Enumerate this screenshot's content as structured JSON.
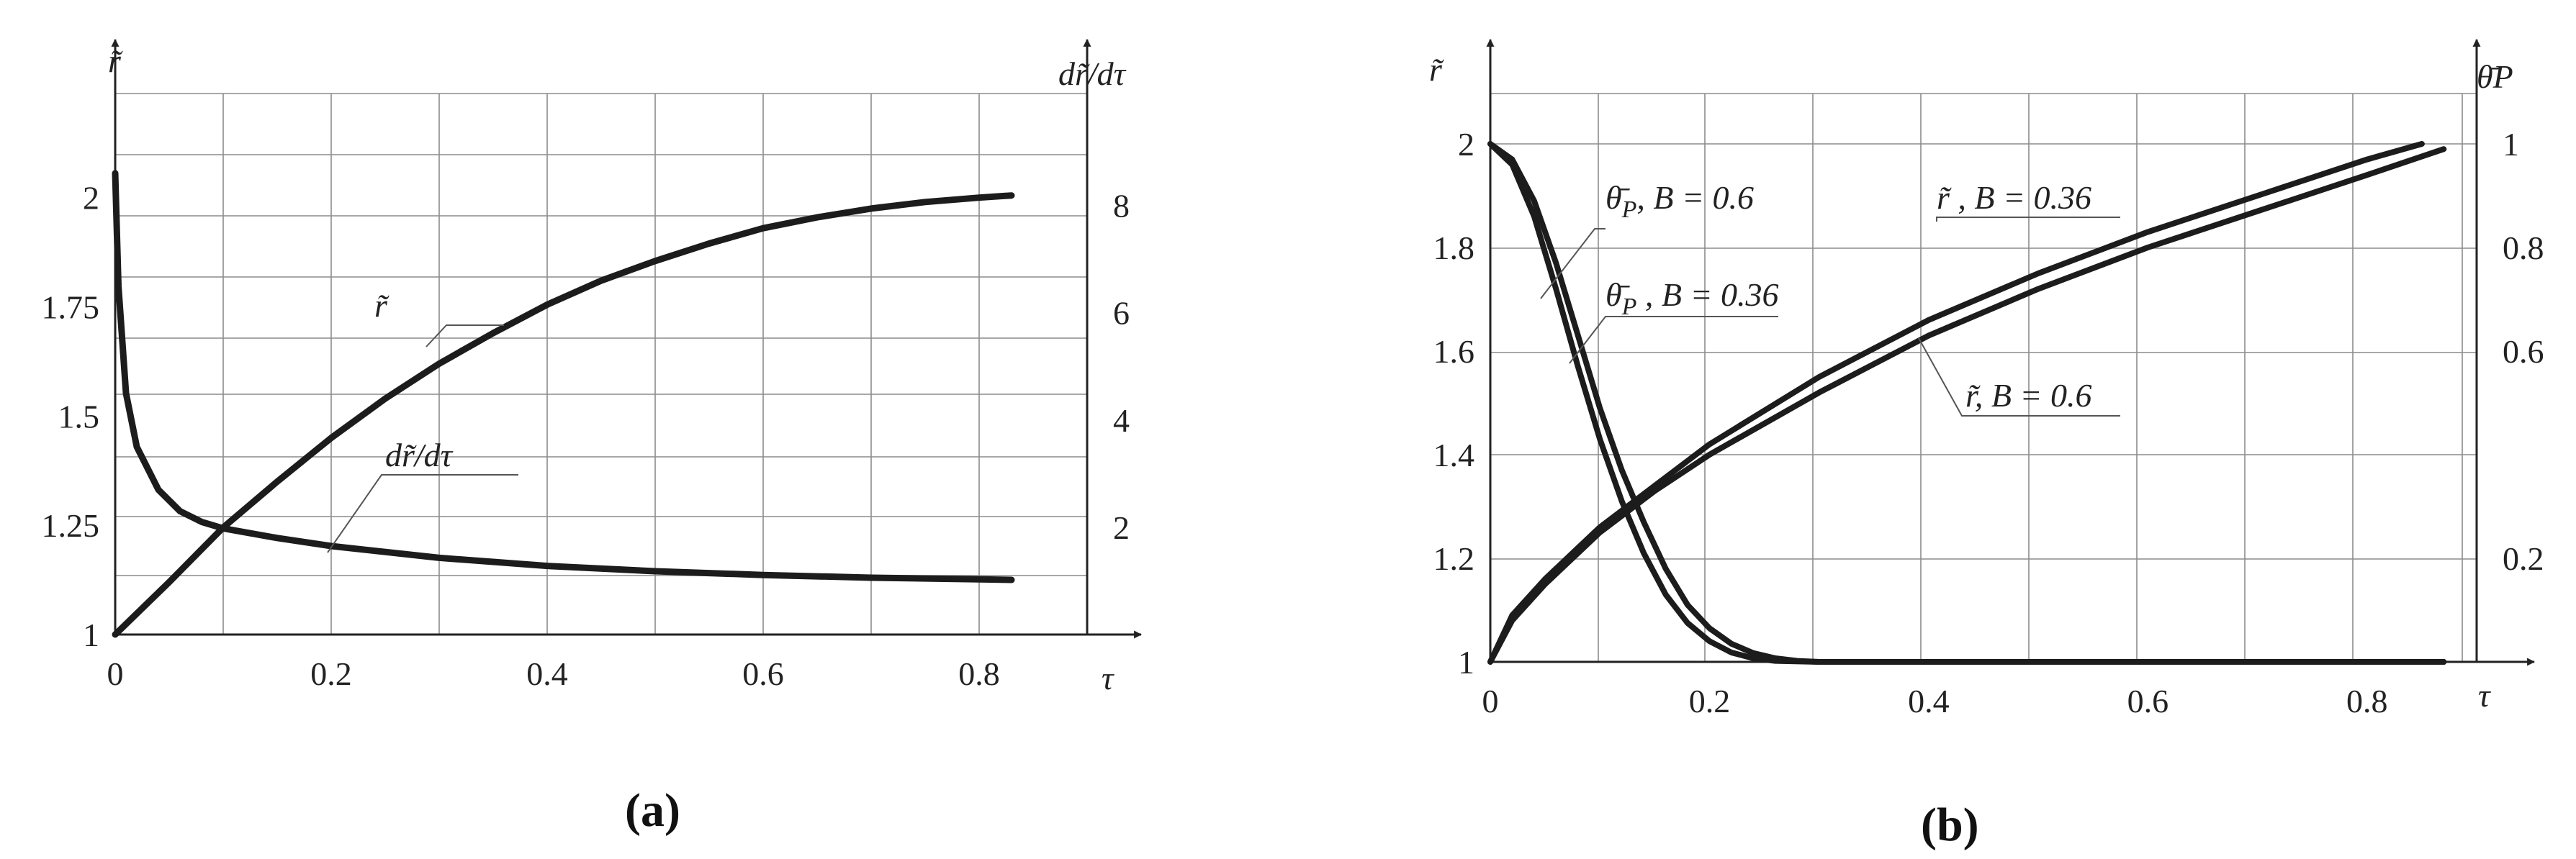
{
  "chart_data": [
    {
      "type": "line",
      "caption": "(a)",
      "xlabel": "τ",
      "ylabel_left": "r̃",
      "ylabel_right": "dr̃/dτ",
      "xlim": [
        0,
        0.9
      ],
      "ylim_left": [
        1,
        2.1
      ],
      "ylim_right": [
        0,
        9
      ],
      "x_ticks": [
        "0",
        "0.2",
        "0.4",
        "0.6",
        "0.8"
      ],
      "y_left_ticks": [
        "1",
        "1.25",
        "1.5",
        "1.75",
        "2"
      ],
      "y_right_ticks": [
        "2",
        "4",
        "6",
        "8"
      ],
      "grid": true,
      "series": [
        {
          "name": "r̃",
          "axis": "left",
          "x": [
            0,
            0.05,
            0.1,
            0.15,
            0.2,
            0.25,
            0.3,
            0.35,
            0.4,
            0.45,
            0.5,
            0.55,
            0.6,
            0.65,
            0.7,
            0.75,
            0.8,
            0.83
          ],
          "y": [
            1.0,
            1.12,
            1.245,
            1.35,
            1.45,
            1.54,
            1.62,
            1.69,
            1.755,
            1.81,
            1.855,
            1.895,
            1.93,
            1.955,
            1.975,
            1.99,
            2.0,
            2.005
          ]
        },
        {
          "name": "dr̃/dτ",
          "axis": "right",
          "x": [
            0,
            0.003,
            0.01,
            0.02,
            0.04,
            0.06,
            0.08,
            0.1,
            0.15,
            0.2,
            0.3,
            0.4,
            0.5,
            0.6,
            0.7,
            0.8,
            0.83
          ],
          "y": [
            8.6,
            6.5,
            4.5,
            3.5,
            2.7,
            2.3,
            2.1,
            1.98,
            1.8,
            1.65,
            1.43,
            1.28,
            1.18,
            1.11,
            1.06,
            1.03,
            1.02
          ]
        }
      ]
    },
    {
      "type": "line",
      "caption": "(b)",
      "xlabel": "τ",
      "ylabel_left": "r̃",
      "ylabel_right": "θ̄P",
      "xlim": [
        0,
        0.9
      ],
      "ylim_left": [
        1,
        2
      ],
      "ylim_right": [
        0,
        1
      ],
      "x_ticks": [
        "0",
        "0.2",
        "0.4",
        "0.6",
        "0.8"
      ],
      "y_left_ticks": [
        "1",
        "1.2",
        "1.4",
        "1.6",
        "1.8",
        "2"
      ],
      "y_right_ticks": [
        "0.2",
        "0.6",
        "0.8",
        "1"
      ],
      "grid": true,
      "annotations": {
        "theta_06_base": "θ̄",
        "theta_06_sub": "P",
        "theta_06_text": ", B = 0.6",
        "theta_036_base": "θ̄",
        "theta_036_sub": "P",
        "theta_036_text": " , B = 0.36",
        "r_036_base": "r̃",
        "r_036_text": " , B = 0.36",
        "r_06_base": "r̃",
        "r_06_text": ", B = 0.6"
      },
      "series": [
        {
          "name": "r̃, B = 0.36",
          "axis": "left",
          "x": [
            0,
            0.02,
            0.05,
            0.1,
            0.15,
            0.2,
            0.3,
            0.4,
            0.5,
            0.6,
            0.7,
            0.8,
            0.85
          ],
          "y": [
            1.0,
            1.09,
            1.16,
            1.26,
            1.34,
            1.42,
            1.55,
            1.66,
            1.75,
            1.83,
            1.9,
            1.97,
            2.0
          ]
        },
        {
          "name": "r̃, B = 0.6",
          "axis": "left",
          "x": [
            0,
            0.02,
            0.05,
            0.1,
            0.15,
            0.2,
            0.3,
            0.4,
            0.5,
            0.6,
            0.7,
            0.8,
            0.87
          ],
          "y": [
            1.0,
            1.08,
            1.15,
            1.25,
            1.33,
            1.4,
            1.52,
            1.63,
            1.72,
            1.8,
            1.87,
            1.94,
            1.99
          ]
        },
        {
          "name": "θ̄P, B = 0.6",
          "axis": "right",
          "x": [
            0,
            0.02,
            0.04,
            0.06,
            0.08,
            0.1,
            0.12,
            0.14,
            0.16,
            0.18,
            0.2,
            0.22,
            0.24,
            0.26,
            0.3,
            0.4,
            0.6,
            0.8,
            0.87
          ],
          "y": [
            1.0,
            0.96,
            0.86,
            0.72,
            0.57,
            0.43,
            0.31,
            0.21,
            0.13,
            0.075,
            0.04,
            0.018,
            0.007,
            0.002,
            0,
            0,
            0,
            0,
            0
          ]
        },
        {
          "name": "θ̄P, B = 0.36",
          "axis": "right",
          "x": [
            0,
            0.02,
            0.04,
            0.06,
            0.08,
            0.1,
            0.12,
            0.14,
            0.16,
            0.18,
            0.2,
            0.22,
            0.24,
            0.26,
            0.28,
            0.3,
            0.4,
            0.6,
            0.8,
            0.87
          ],
          "y": [
            1.0,
            0.97,
            0.89,
            0.77,
            0.63,
            0.49,
            0.37,
            0.27,
            0.18,
            0.11,
            0.065,
            0.035,
            0.017,
            0.007,
            0.002,
            0,
            0,
            0,
            0,
            0
          ]
        }
      ]
    }
  ]
}
